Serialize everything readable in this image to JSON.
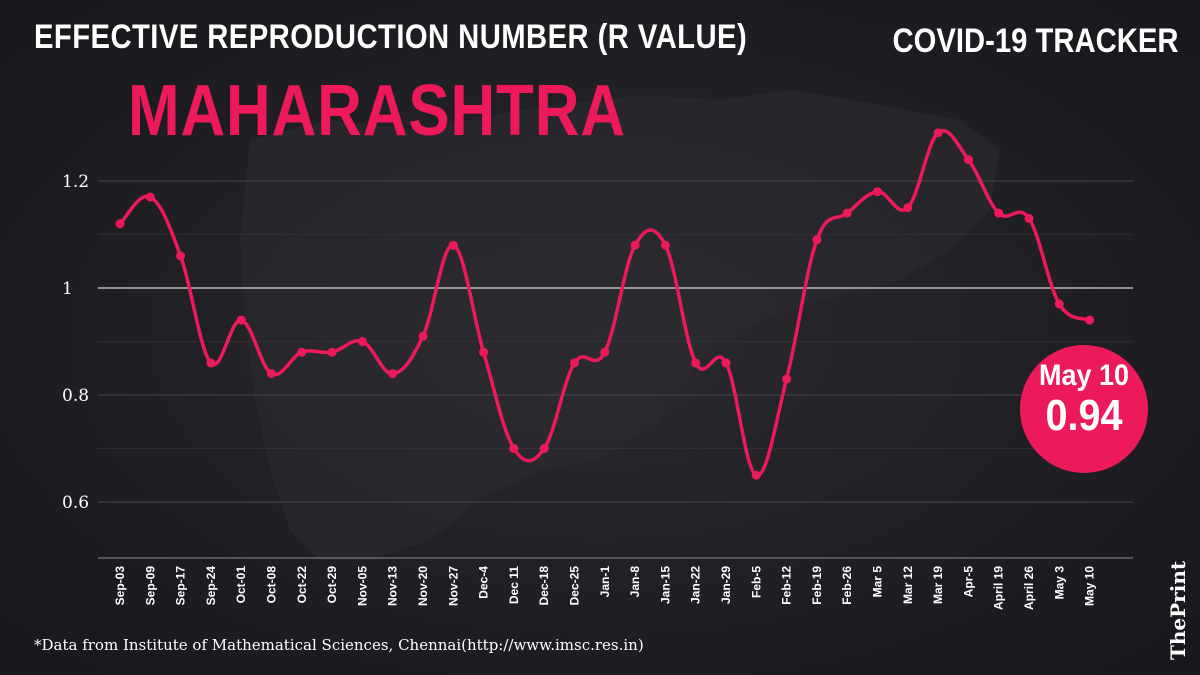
{
  "header": {
    "title": "EFFECTIVE REPRODUCTION NUMBER (R VALUE)",
    "subtitle": "MAHARASHTRA",
    "tracker": "COVID-19 TRACKER"
  },
  "callout": {
    "date": "May 10",
    "value": "0.94"
  },
  "source_note": "*Data from Institute of Mathematical Sciences, Chennai(http://www.imsc.res.in)",
  "brand": "ThePrint",
  "colors": {
    "background": "#1d1d22",
    "line": "#ed1a5b",
    "text": "#ffffff",
    "grid": "#55555c"
  },
  "chart_data": {
    "type": "line",
    "title": "",
    "xlabel": "",
    "ylabel": "",
    "ylim": [
      0.5,
      1.3
    ],
    "yticks": [
      0.6,
      0.8,
      1,
      1.2
    ],
    "ytick_labels": [
      "0.6",
      "0.8",
      "1",
      "1.2"
    ],
    "grid": true,
    "categories": [
      "Sep-03",
      "Sep-09",
      "Sep-17",
      "Sep-24",
      "Oct-01",
      "Oct-08",
      "Oct-22",
      "Oct-29",
      "Nov-05",
      "Nov-13",
      "Nov-20",
      "Nov-27",
      "Dec-4",
      "Dec 11",
      "Dec-18",
      "Dec-25",
      "Jan-1",
      "Jan-8",
      "Jan-15",
      "Jan-22",
      "Jan-29",
      "Feb-5",
      "Feb-12",
      "Feb-19",
      "Feb-26",
      "Mar 5",
      "Mar 12",
      "Mar 19",
      "Apr-5",
      "April 19",
      "April 26",
      "May 3",
      "May 10"
    ],
    "series": [
      {
        "values": [
          1.12,
          1.17,
          1.06,
          0.86,
          0.94,
          0.84,
          0.88,
          0.88,
          0.9,
          0.84,
          0.91,
          1.08,
          0.88,
          0.7,
          0.7,
          0.86,
          0.88,
          1.08,
          1.08,
          0.86,
          0.86,
          0.65,
          0.83,
          1.09,
          1.14,
          1.18,
          1.15,
          1.29,
          1.24,
          1.14,
          1.13,
          0.97,
          0.94
        ]
      }
    ]
  }
}
